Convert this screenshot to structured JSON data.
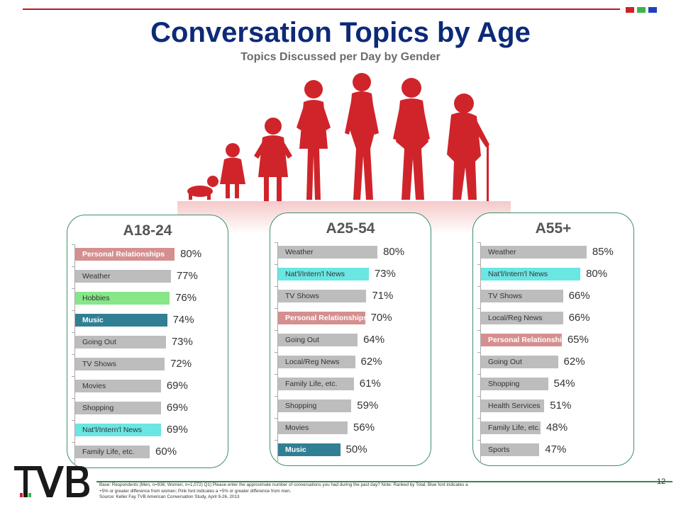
{
  "header": {
    "title": "Conversation Topics by Age",
    "subtitle": "Topics Discussed per Day by Gender",
    "accent_squares": [
      "#d21f26",
      "#39b54a",
      "#1f3fbf"
    ]
  },
  "chart_data": [
    {
      "type": "bar",
      "title": "A18-24",
      "orientation": "horizontal",
      "categories": [
        "Personal Relationships",
        "Weather",
        "Hobbies",
        "Music",
        "Going Out",
        "TV Shows",
        "Movies",
        "Shopping",
        "Nat'l/Intern'l News",
        "Family Life, etc."
      ],
      "values": [
        80,
        77,
        76,
        74,
        73,
        72,
        69,
        69,
        69,
        60
      ],
      "labels": [
        "80%",
        "77%",
        "76%",
        "74%",
        "73%",
        "72%",
        "69%",
        "69%",
        "69%",
        "60%"
      ],
      "bar_colors": [
        "#d58f8f",
        "#bdbdbd",
        "#86e688",
        "#317f94",
        "#bdbdbd",
        "#bdbdbd",
        "#bdbdbd",
        "#bdbdbd",
        "#6ae6e3",
        "#bdbdbd"
      ],
      "xlim": [
        0,
        100
      ]
    },
    {
      "type": "bar",
      "title": "A25-54",
      "orientation": "horizontal",
      "categories": [
        "Weather",
        "Nat'l/Intern'l News",
        "TV Shows",
        "Personal Relationships",
        "Going Out",
        "Local/Reg News",
        "Family Life, etc.",
        "Shopping",
        "Movies",
        "Music"
      ],
      "values": [
        80,
        73,
        71,
        70,
        64,
        62,
        61,
        59,
        56,
        50
      ],
      "labels": [
        "80%",
        "73%",
        "71%",
        "70%",
        "64%",
        "62%",
        "61%",
        "59%",
        "56%",
        "50%"
      ],
      "bar_colors": [
        "#bdbdbd",
        "#6ae6e3",
        "#bdbdbd",
        "#d58f8f",
        "#bdbdbd",
        "#bdbdbd",
        "#bdbdbd",
        "#bdbdbd",
        "#bdbdbd",
        "#317f94"
      ],
      "xlim": [
        0,
        100
      ]
    },
    {
      "type": "bar",
      "title": "A55+",
      "orientation": "horizontal",
      "categories": [
        "Weather",
        "Nat'l/Intern'l News",
        "TV Shows",
        "Local/Reg News",
        "Personal Relationships",
        "Going Out",
        "Shopping",
        "Health Services",
        "Family Life, etc.",
        "Sports"
      ],
      "values": [
        85,
        80,
        66,
        66,
        65,
        62,
        54,
        51,
        48,
        47
      ],
      "labels": [
        "85%",
        "80%",
        "66%",
        "66%",
        "65%",
        "62%",
        "54%",
        "51%",
        "48%",
        "47%"
      ],
      "bar_colors": [
        "#bdbdbd",
        "#6ae6e3",
        "#bdbdbd",
        "#bdbdbd",
        "#d58f8f",
        "#bdbdbd",
        "#bdbdbd",
        "#bdbdbd",
        "#bdbdbd",
        "#bdbdbd"
      ],
      "xlim": [
        0,
        100
      ]
    }
  ],
  "footer": {
    "logo_text": "TVB",
    "footnote_lines": [
      "Base: Respondents (Men, n=936; Women, n=1,072)   Q1) Please enter the approximate number of conversations you had during the past day?  Note: Ranked by Total; Blue font indicates a",
      "+5% or greater difference from women; Pink font indicates a +5% or greater difference from men.",
      "Source: Keller Fay TVB American Conversation Study, April 9-26, 2013"
    ],
    "page_number": "12"
  }
}
